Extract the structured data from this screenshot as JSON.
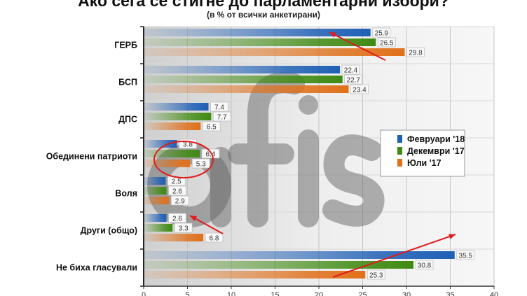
{
  "chart_data": {
    "type": "bar",
    "orientation": "horizontal",
    "title": "Ако сега се стигне до парламентарни избори?",
    "subtitle": "(в % от всички анкетирани)",
    "categories": [
      "ГЕРБ",
      "БСП",
      "ДПС",
      "Обединени патриоти",
      "Воля",
      "Други (общо)",
      "Не биха гласували"
    ],
    "series": [
      {
        "name": "Февруари '18",
        "color": "#1f5fb5",
        "values": [
          25.9,
          22.4,
          7.4,
          3.8,
          2.5,
          2.6,
          35.5
        ]
      },
      {
        "name": "Декември '17",
        "color": "#3f8a12",
        "values": [
          26.5,
          22.7,
          7.7,
          6.4,
          2.6,
          3.3,
          30.8
        ]
      },
      {
        "name": "Юли '17",
        "color": "#e0701a",
        "values": [
          29.8,
          23.4,
          6.5,
          5.3,
          2.9,
          6.8,
          25.3
        ]
      }
    ],
    "xlim": [
      0,
      40
    ],
    "xticks": [
      "0",
      "5",
      "10",
      "15",
      "20",
      "25",
      "30",
      "35",
      "40"
    ],
    "grid": true,
    "legend_position": "right",
    "watermark": "afis",
    "annotations": [
      "red arrow ГЕРБ",
      "red ellipse Обединени патриоти",
      "red arrow Други (общо)",
      "red arrow Не биха гласували"
    ]
  }
}
